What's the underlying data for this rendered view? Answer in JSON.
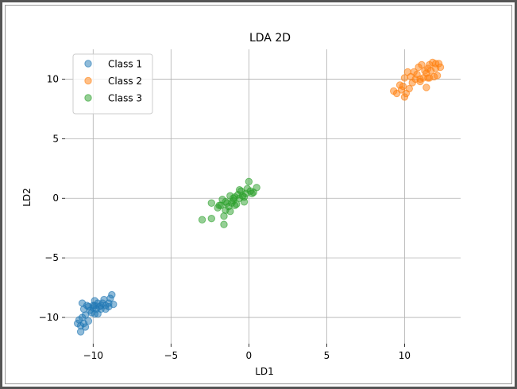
{
  "chart_data": {
    "type": "scatter",
    "title": "LDA 2D",
    "xlabel": "LD1",
    "ylabel": "LD2",
    "xlim": [
      -11.8,
      13.6
    ],
    "ylim": [
      -12.2,
      12.5
    ],
    "xticks": [
      -10,
      -5,
      0,
      5,
      10
    ],
    "xtick_labels": [
      "−10",
      "−5",
      "0",
      "5",
      "10"
    ],
    "yticks": [
      -10,
      -5,
      0,
      5,
      10
    ],
    "ytick_labels": [
      "−10",
      "−5",
      "0",
      "5",
      "10"
    ],
    "grid": true,
    "legend_position": "upper-left",
    "series": [
      {
        "name": "Class 1",
        "color": "#1f77b4",
        "points": [
          [
            -11.0,
            -10.5
          ],
          [
            -10.9,
            -10.2
          ],
          [
            -10.7,
            -10.0
          ],
          [
            -10.5,
            -9.8
          ],
          [
            -10.6,
            -9.3
          ],
          [
            -10.4,
            -9.0
          ],
          [
            -10.2,
            -9.4
          ],
          [
            -10.0,
            -9.2
          ],
          [
            -9.9,
            -9.0
          ],
          [
            -9.8,
            -9.3
          ],
          [
            -9.7,
            -8.8
          ],
          [
            -9.6,
            -9.1
          ],
          [
            -9.5,
            -9.0
          ],
          [
            -9.4,
            -8.8
          ],
          [
            -9.3,
            -8.5
          ],
          [
            -9.2,
            -9.0
          ],
          [
            -9.0,
            -8.8
          ],
          [
            -8.9,
            -8.4
          ],
          [
            -8.8,
            -8.1
          ],
          [
            -8.7,
            -8.9
          ],
          [
            -9.9,
            -8.6
          ],
          [
            -10.7,
            -8.8
          ],
          [
            -10.8,
            -10.7
          ],
          [
            -10.5,
            -10.8
          ],
          [
            -10.3,
            -10.3
          ],
          [
            -10.6,
            -10.5
          ],
          [
            -10.8,
            -11.2
          ],
          [
            -9.7,
            -9.7
          ],
          [
            -9.5,
            -9.3
          ],
          [
            -9.2,
            -9.3
          ],
          [
            -10.1,
            -9.6
          ],
          [
            -10.3,
            -9.1
          ],
          [
            -9.9,
            -9.7
          ],
          [
            -9.0,
            -9.1
          ],
          [
            -10.0,
            -9.0
          ]
        ]
      },
      {
        "name": "Class 2",
        "color": "#ff7f0e",
        "points": [
          [
            9.3,
            9.0
          ],
          [
            9.5,
            8.8
          ],
          [
            9.8,
            9.1
          ],
          [
            10.0,
            8.5
          ],
          [
            10.1,
            8.8
          ],
          [
            9.7,
            9.5
          ],
          [
            10.3,
            9.2
          ],
          [
            10.5,
            9.7
          ],
          [
            10.7,
            10.0
          ],
          [
            10.8,
            10.4
          ],
          [
            11.0,
            9.8
          ],
          [
            11.2,
            10.1
          ],
          [
            11.4,
            10.5
          ],
          [
            11.5,
            10.9
          ],
          [
            11.6,
            11.2
          ],
          [
            11.7,
            10.7
          ],
          [
            11.8,
            11.4
          ],
          [
            12.0,
            10.9
          ],
          [
            12.2,
            11.3
          ],
          [
            12.3,
            11.0
          ],
          [
            11.9,
            10.2
          ],
          [
            12.1,
            10.3
          ],
          [
            11.3,
            10.7
          ],
          [
            11.1,
            11.2
          ],
          [
            10.9,
            11.0
          ],
          [
            10.6,
            10.6
          ],
          [
            10.4,
            10.2
          ],
          [
            10.2,
            10.6
          ],
          [
            10.0,
            10.1
          ],
          [
            9.9,
            9.4
          ],
          [
            11.4,
            9.3
          ],
          [
            11.5,
            10.1
          ],
          [
            11.0,
            10.0
          ],
          [
            12.0,
            11.3
          ],
          [
            11.6,
            10.1
          ]
        ]
      },
      {
        "name": "Class 3",
        "color": "#2ca02c",
        "points": [
          [
            -3.0,
            -1.8
          ],
          [
            -2.4,
            -1.7
          ],
          [
            -2.4,
            -0.4
          ],
          [
            -2.0,
            -0.8
          ],
          [
            -1.8,
            -0.6
          ],
          [
            -1.7,
            -0.1
          ],
          [
            -1.6,
            -1.5
          ],
          [
            -1.6,
            -2.2
          ],
          [
            -1.5,
            -1.0
          ],
          [
            -1.4,
            -0.4
          ],
          [
            -1.3,
            -0.7
          ],
          [
            -1.2,
            -1.1
          ],
          [
            -1.1,
            -0.4
          ],
          [
            -1.0,
            -0.2
          ],
          [
            -0.9,
            0.1
          ],
          [
            -0.8,
            -0.5
          ],
          [
            -0.7,
            0.3
          ],
          [
            -0.6,
            0.0
          ],
          [
            -0.5,
            0.6
          ],
          [
            -0.4,
            0.2
          ],
          [
            -0.3,
            -0.3
          ],
          [
            -0.2,
            0.4
          ],
          [
            -0.1,
            0.8
          ],
          [
            0.0,
            1.4
          ],
          [
            0.1,
            0.6
          ],
          [
            0.2,
            0.4
          ],
          [
            0.5,
            0.9
          ],
          [
            -0.6,
            0.7
          ],
          [
            -1.5,
            -0.3
          ],
          [
            -1.2,
            0.2
          ],
          [
            -0.9,
            -0.6
          ],
          [
            -0.3,
            0.1
          ],
          [
            0.3,
            0.5
          ],
          [
            -1.9,
            -0.6
          ],
          [
            -1.0,
            0.0
          ]
        ]
      }
    ]
  }
}
